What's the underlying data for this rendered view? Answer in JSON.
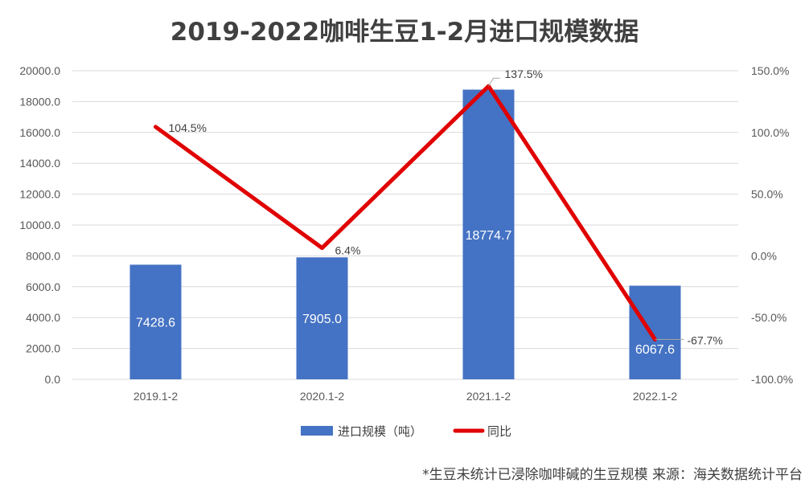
{
  "chart_data": {
    "type": "bar",
    "title": "2019-2022咖啡生豆1-2月进口规模数据",
    "categories": [
      "2019.1-2",
      "2020.1-2",
      "2021.1-2",
      "2022.1-2"
    ],
    "series": [
      {
        "name": "进口规模（吨）",
        "type": "bar",
        "axis": "left",
        "values": [
          7428.6,
          7905.0,
          18774.7,
          6067.6
        ],
        "labels": [
          "7428.6",
          "7905.0",
          "18774.7",
          "6067.6"
        ],
        "color": "#4472C4"
      },
      {
        "name": "同比",
        "type": "line",
        "axis": "right",
        "values": [
          104.5,
          6.4,
          137.5,
          -67.7
        ],
        "labels": [
          "104.5%",
          "6.4%",
          "137.5%",
          "-67.7%"
        ],
        "color": "#E00000"
      }
    ],
    "y_left": {
      "ylim": [
        0,
        20000
      ],
      "ticks": [
        "0.0",
        "2000.0",
        "4000.0",
        "6000.0",
        "8000.0",
        "10000.0",
        "12000.0",
        "14000.0",
        "16000.0",
        "18000.0",
        "20000.0"
      ]
    },
    "y_right": {
      "ylim": [
        -100,
        150
      ],
      "ticks": [
        "-100.0%",
        "-50.0%",
        "0.0%",
        "50.0%",
        "100.0%",
        "150.0%"
      ]
    },
    "grid": true,
    "legend_position": "bottom"
  },
  "footnote": "*生豆未统计已浸除咖啡碱的生豆规模  来源：海关数据统计平台"
}
